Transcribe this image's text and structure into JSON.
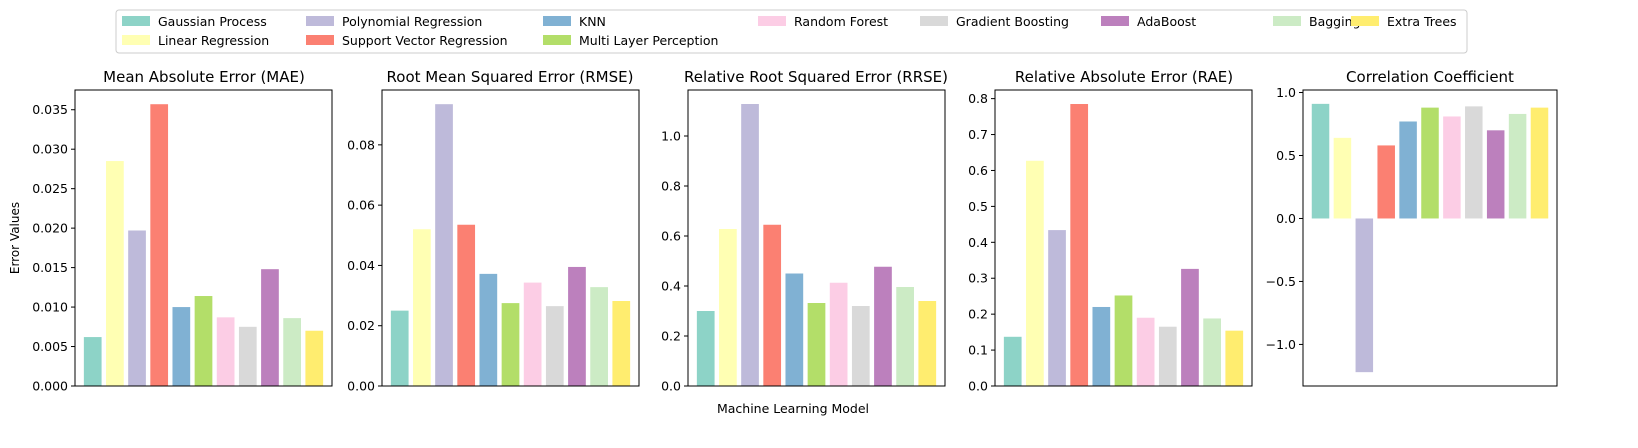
{
  "figure": {
    "ylabel": "Error Values",
    "xlabel": "Machine Learning Model"
  },
  "legend": {
    "placement": "top-center",
    "items": [
      {
        "label": "Gaussian Process",
        "color": "#8dd3c7"
      },
      {
        "label": "Linear Regression",
        "color": "#ffffb3"
      },
      {
        "label": "Polynomial Regression",
        "color": "#bebada"
      },
      {
        "label": "Support Vector Regression",
        "color": "#fb8072"
      },
      {
        "label": "KNN",
        "color": "#80b1d3"
      },
      {
        "label": "Multi Layer Perception",
        "color": "#b3de69"
      },
      {
        "label": "Random Forest",
        "color": "#fccde5"
      },
      {
        "label": "Gradient Boosting",
        "color": "#d9d9d9"
      },
      {
        "label": "AdaBoost",
        "color": "#bc80bd"
      },
      {
        "label": "Bagging",
        "color": "#ccebc5"
      },
      {
        "label": "Extra Trees",
        "color": "#ffed6f"
      }
    ]
  },
  "chart_data": [
    {
      "type": "bar",
      "title": "Mean Absolute Error (MAE)",
      "categories": [
        "Gaussian Process",
        "Linear Regression",
        "Polynomial Regression",
        "Support Vector Regression",
        "KNN",
        "Multi Layer Perception",
        "Random Forest",
        "Gradient Boosting",
        "AdaBoost",
        "Bagging",
        "Extra Trees"
      ],
      "values": [
        0.0062,
        0.0285,
        0.0197,
        0.0357,
        0.01,
        0.0114,
        0.0087,
        0.0075,
        0.0148,
        0.0086,
        0.007
      ],
      "ylim": [
        0,
        0.0375
      ],
      "yticks": [
        0.0,
        0.005,
        0.01,
        0.015,
        0.02,
        0.025,
        0.03,
        0.035
      ],
      "ytick_labels": [
        "0.000",
        "0.005",
        "0.010",
        "0.015",
        "0.020",
        "0.025",
        "0.030",
        "0.035"
      ],
      "grid": false
    },
    {
      "type": "bar",
      "title": "Root Mean Squared Error (RMSE)",
      "categories": [
        "Gaussian Process",
        "Linear Regression",
        "Polynomial Regression",
        "Support Vector Regression",
        "KNN",
        "Multi Layer Perception",
        "Random Forest",
        "Gradient Boosting",
        "AdaBoost",
        "Bagging",
        "Extra Trees"
      ],
      "values": [
        0.025,
        0.052,
        0.0935,
        0.0535,
        0.0372,
        0.0275,
        0.0343,
        0.0265,
        0.0395,
        0.0328,
        0.0282
      ],
      "ylim": [
        0,
        0.0982
      ],
      "yticks": [
        0.0,
        0.02,
        0.04,
        0.06,
        0.08
      ],
      "ytick_labels": [
        "0.00",
        "0.02",
        "0.04",
        "0.06",
        "0.08"
      ],
      "grid": false
    },
    {
      "type": "bar",
      "title": "Relative Root Squared Error (RRSE)",
      "categories": [
        "Gaussian Process",
        "Linear Regression",
        "Polynomial Regression",
        "Support Vector Regression",
        "KNN",
        "Multi Layer Perception",
        "Random Forest",
        "Gradient Boosting",
        "AdaBoost",
        "Bagging",
        "Extra Trees"
      ],
      "values": [
        0.3,
        0.628,
        1.128,
        0.645,
        0.45,
        0.332,
        0.413,
        0.32,
        0.477,
        0.396,
        0.34
      ],
      "ylim": [
        0,
        1.184
      ],
      "yticks": [
        0.0,
        0.2,
        0.4,
        0.6,
        0.8,
        1.0
      ],
      "ytick_labels": [
        "0.0",
        "0.2",
        "0.4",
        "0.6",
        "0.8",
        "1.0"
      ],
      "grid": false
    },
    {
      "type": "bar",
      "title": "Relative Absolute Error (RAE)",
      "categories": [
        "Gaussian Process",
        "Linear Regression",
        "Polynomial Regression",
        "Support Vector Regression",
        "KNN",
        "Multi Layer Perception",
        "Random Forest",
        "Gradient Boosting",
        "AdaBoost",
        "Bagging",
        "Extra Trees"
      ],
      "values": [
        0.137,
        0.627,
        0.434,
        0.785,
        0.22,
        0.252,
        0.19,
        0.165,
        0.326,
        0.188,
        0.154
      ],
      "ylim": [
        0,
        0.824
      ],
      "yticks": [
        0.0,
        0.1,
        0.2,
        0.3,
        0.4,
        0.5,
        0.6,
        0.7,
        0.8
      ],
      "ytick_labels": [
        "0.0",
        "0.1",
        "0.2",
        "0.3",
        "0.4",
        "0.5",
        "0.6",
        "0.7",
        "0.8"
      ],
      "grid": false
    },
    {
      "type": "bar",
      "title": "Correlation Coefficient",
      "categories": [
        "Gaussian Process",
        "Linear Regression",
        "Polynomial Regression",
        "Support Vector Regression",
        "KNN",
        "Multi Layer Perception",
        "Random Forest",
        "Gradient Boosting",
        "AdaBoost",
        "Bagging",
        "Extra Trees"
      ],
      "values": [
        0.91,
        0.64,
        -1.22,
        0.58,
        0.77,
        0.88,
        0.81,
        0.89,
        0.7,
        0.83,
        0.88
      ],
      "ylim": [
        -1.33,
        1.02
      ],
      "yticks": [
        -1.0,
        -0.5,
        0.0,
        0.5,
        1.0
      ],
      "ytick_labels": [
        "−1.0",
        "−0.5",
        "0.0",
        "0.5",
        "1.0"
      ],
      "grid": false
    }
  ]
}
